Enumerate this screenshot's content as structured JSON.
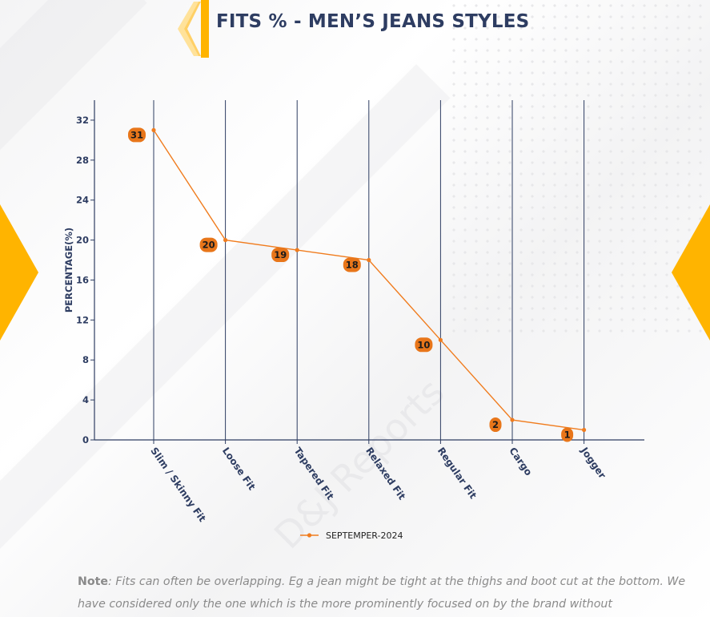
{
  "page": {
    "title": "FITS % - MEN’S JEANS STYLES",
    "note_label": "Note",
    "note_text": ": Fits can often be overlapping. Eg a jean might be tight at the thighs and boot cut at the bottom. We have considered only the one which is the more prominently focused on by the brand without",
    "watermark": "D&J Reports"
  },
  "colors": {
    "accent": "#ffb400",
    "title": "#2e3d62",
    "axis": "#2e3d62",
    "series": "#f07c1e",
    "label_bg": "#e8761a",
    "label_text": "#1a1a1a",
    "note": "#8a8a8a"
  },
  "chart_data": {
    "type": "line",
    "title": "",
    "xlabel": "",
    "ylabel": "PERCENTAGE(%)",
    "categories": [
      "Slim / Skinny Fit",
      "Loose Fit",
      "Tapered Fit",
      "Relaxed Fit",
      "Regular Fit",
      "Cargo",
      "Jogger"
    ],
    "series": [
      {
        "name": "SEPTEMPER-2024",
        "values": [
          31,
          20,
          19,
          18,
          10,
          2,
          1
        ]
      }
    ],
    "ylim": [
      0,
      34
    ],
    "yticks": [
      0,
      4,
      8,
      12,
      16,
      20,
      24,
      28,
      32
    ],
    "grid": "vertical",
    "legend": "bottom-center"
  }
}
